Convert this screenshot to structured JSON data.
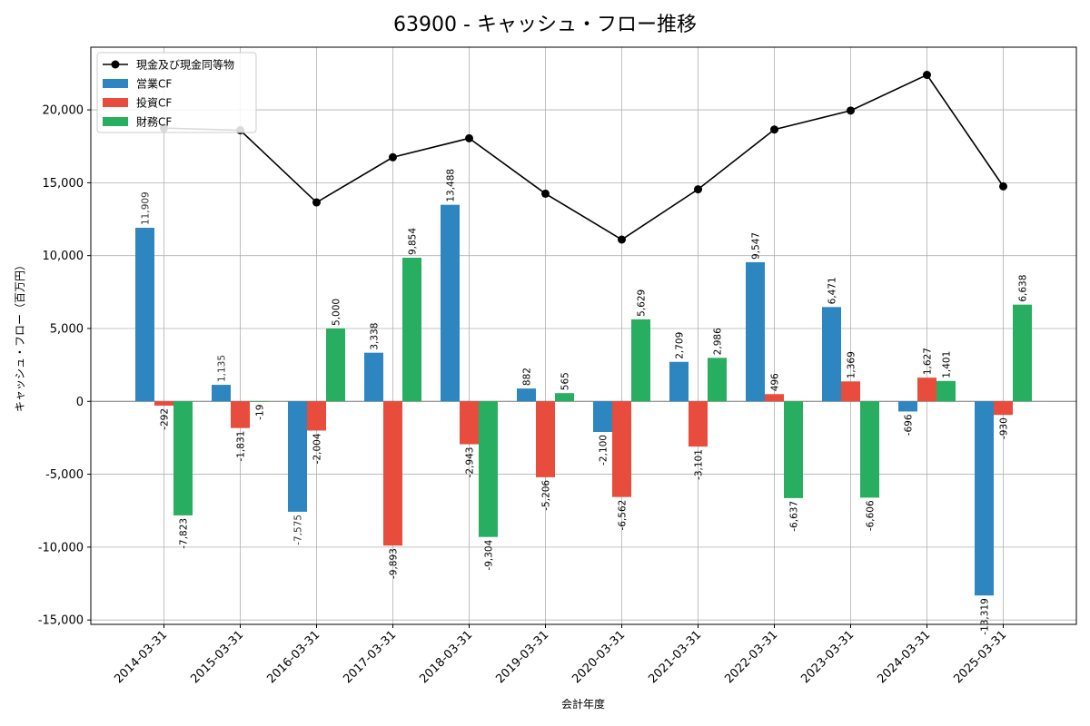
{
  "chart_data": {
    "type": "bar",
    "title": "63900 - キャッシュ・フロー推移",
    "xlabel": "会計年度",
    "ylabel": "キャッシュ・フロー（百万円）",
    "categories": [
      "2014-03-31",
      "2015-03-31",
      "2016-03-31",
      "2017-03-31",
      "2018-03-31",
      "2019-03-31",
      "2020-03-31",
      "2021-03-31",
      "2022-03-31",
      "2023-03-31",
      "2024-03-31",
      "2025-03-31"
    ],
    "ylim": [
      -15300,
      24300
    ],
    "yticks": [
      -15000,
      -10000,
      -5000,
      0,
      5000,
      10000,
      15000,
      20000
    ],
    "ytick_labels": [
      "-15,000",
      "-10,000",
      "-5,000",
      "0",
      "5,000",
      "10,000",
      "15,000",
      "20,000"
    ],
    "grid": true,
    "legend_position": "top-left",
    "series": [
      {
        "name": "営業CF",
        "kind": "bar",
        "color": "#2e86c1",
        "values": [
          11909,
          1135,
          -7575,
          3338,
          13488,
          882,
          -2100,
          2709,
          9547,
          6471,
          -696,
          -13319
        ],
        "labels": [
          "11,909",
          "1,135",
          "-7,575",
          "3,338",
          "13,488",
          "882",
          "-2,100",
          "2,709",
          "9,547",
          "6,471",
          "-696",
          "-13,319"
        ]
      },
      {
        "name": "投資CF",
        "kind": "bar",
        "color": "#e74c3c",
        "values": [
          -292,
          -1831,
          -2004,
          -9893,
          -2943,
          -5206,
          -6562,
          -3101,
          496,
          1369,
          1627,
          -930
        ],
        "labels": [
          "-292",
          "-1,831",
          "-2,004",
          "-9,893",
          "-2,943",
          "-5,206",
          "-6,562",
          "-3,101",
          "496",
          "1,369",
          "1,627",
          "-930"
        ]
      },
      {
        "name": "財務CF",
        "kind": "bar",
        "color": "#27ae60",
        "values": [
          -7823,
          -19,
          5000,
          9854,
          -9304,
          565,
          5629,
          2986,
          -6637,
          -6606,
          1401,
          6638
        ],
        "labels": [
          "-7,823",
          "-19",
          "5,000",
          "9,854",
          "-9,304",
          "565",
          "5,629",
          "2,986",
          "-6,637",
          "-6,606",
          "1,401",
          "6,638"
        ]
      },
      {
        "name": "現金及び現金同等物",
        "kind": "line",
        "color": "#000000",
        "values": [
          18750,
          18600,
          13650,
          16750,
          18050,
          14250,
          11100,
          14550,
          18650,
          19950,
          22400,
          14750
        ]
      }
    ]
  }
}
